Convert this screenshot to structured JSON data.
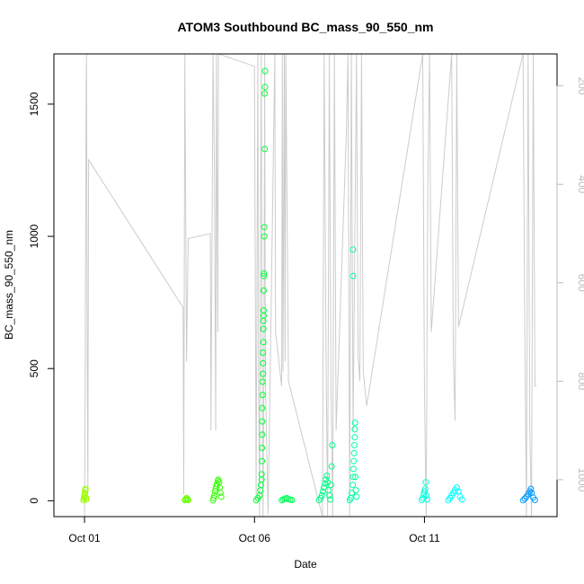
{
  "chart_data": {
    "type": "scatter",
    "title": "ATOM3 Southbound BC_mass_90_550_nm",
    "xlabel": "Date",
    "ylabel": "BC_mass_90_550_nm",
    "x_ticks": [
      {
        "label": "Oct 01",
        "day": 1
      },
      {
        "label": "Oct 06",
        "day": 6
      },
      {
        "label": "Oct 11",
        "day": 11
      }
    ],
    "xlim_days": [
      0.1,
      14.9
    ],
    "ylim": [
      -60,
      1690
    ],
    "y_ticks": [
      0,
      500,
      1000,
      1500
    ],
    "y2_axis": {
      "reversed": true,
      "lim": [
        1075,
        135
      ],
      "ticks": [
        200,
        400,
        600,
        800,
        1000
      ],
      "color": "#bbbbbb"
    },
    "series": [
      {
        "day": 1.0,
        "color": "#99ff00",
        "points": [
          [
            -0.03,
            2
          ],
          [
            -0.02,
            8
          ],
          [
            -0.01,
            15
          ],
          [
            0.0,
            22
          ],
          [
            0.01,
            30
          ],
          [
            0.02,
            40
          ],
          [
            0.03,
            45
          ],
          [
            0.04,
            12
          ],
          [
            0.05,
            5
          ]
        ]
      },
      {
        "day": 4.0,
        "color": "#66ff00",
        "points": [
          [
            -0.05,
            2
          ],
          [
            -0.02,
            5
          ],
          [
            0.0,
            10
          ],
          [
            0.02,
            6
          ],
          [
            0.05,
            3
          ]
        ]
      },
      {
        "day": 4.9,
        "color": "#33ff00",
        "points": [
          [
            -0.12,
            2
          ],
          [
            -0.1,
            10
          ],
          [
            -0.08,
            20
          ],
          [
            -0.06,
            35
          ],
          [
            -0.04,
            45
          ],
          [
            -0.02,
            55
          ],
          [
            0.0,
            65
          ],
          [
            0.02,
            75
          ],
          [
            0.04,
            80
          ],
          [
            0.06,
            70
          ],
          [
            0.08,
            50
          ],
          [
            0.1,
            30
          ],
          [
            0.12,
            15
          ]
        ]
      },
      {
        "day": 6.15,
        "color": "#00ff33",
        "points": [
          [
            -0.1,
            2
          ],
          [
            -0.05,
            10
          ],
          [
            0.0,
            20
          ],
          [
            0.02,
            40
          ],
          [
            0.04,
            60
          ],
          [
            0.06,
            80
          ],
          [
            0.06,
            100
          ],
          [
            0.07,
            150
          ],
          [
            0.07,
            200
          ],
          [
            0.08,
            250
          ],
          [
            0.08,
            300
          ],
          [
            0.08,
            350
          ],
          [
            0.09,
            400
          ],
          [
            0.09,
            450
          ],
          [
            0.1,
            480
          ],
          [
            0.1,
            520
          ],
          [
            0.1,
            560
          ],
          [
            0.11,
            600
          ],
          [
            0.11,
            650
          ],
          [
            0.11,
            680
          ],
          [
            0.12,
            700
          ],
          [
            0.12,
            720
          ],
          [
            0.12,
            795
          ],
          [
            0.13,
            850
          ],
          [
            0.13,
            860
          ],
          [
            0.14,
            1000
          ],
          [
            0.14,
            1035
          ],
          [
            0.15,
            1330
          ],
          [
            0.15,
            1540
          ],
          [
            0.16,
            1565
          ],
          [
            0.16,
            1625
          ]
        ]
      },
      {
        "day": 6.95,
        "color": "#00ff55",
        "points": [
          [
            -0.15,
            2
          ],
          [
            -0.1,
            5
          ],
          [
            -0.05,
            8
          ],
          [
            0.0,
            10
          ],
          [
            0.05,
            6
          ],
          [
            0.1,
            4
          ],
          [
            0.15,
            3
          ]
        ]
      },
      {
        "day": 8.05,
        "color": "#00ff88",
        "points": [
          [
            -0.15,
            2
          ],
          [
            -0.1,
            10
          ],
          [
            -0.07,
            20
          ],
          [
            -0.04,
            35
          ],
          [
            -0.01,
            50
          ],
          [
            0.02,
            65
          ],
          [
            0.05,
            80
          ],
          [
            0.08,
            95
          ],
          [
            0.1,
            70
          ],
          [
            0.12,
            40
          ],
          [
            0.15,
            20
          ],
          [
            0.18,
            5
          ],
          [
            0.2,
            60
          ],
          [
            0.22,
            130
          ],
          [
            0.24,
            210
          ]
        ]
      },
      {
        "day": 8.9,
        "color": "#00ffa0",
        "points": [
          [
            -0.1,
            2
          ],
          [
            -0.07,
            10
          ],
          [
            -0.04,
            30
          ],
          [
            -0.01,
            60
          ],
          [
            0.0,
            90
          ],
          [
            0.01,
            120
          ],
          [
            0.02,
            150
          ],
          [
            0.03,
            180
          ],
          [
            0.04,
            210
          ],
          [
            0.05,
            240
          ],
          [
            0.05,
            270
          ],
          [
            0.06,
            295
          ],
          [
            0.07,
            90
          ],
          [
            0.08,
            40
          ],
          [
            0.1,
            15
          ],
          [
            0.0,
            850
          ],
          [
            0.0,
            950
          ]
        ]
      },
      {
        "day": 11.0,
        "color": "#00ffdd",
        "points": [
          [
            -0.08,
            2
          ],
          [
            -0.05,
            10
          ],
          [
            -0.02,
            25
          ],
          [
            0.0,
            35
          ],
          [
            0.02,
            45
          ],
          [
            0.04,
            70
          ],
          [
            0.06,
            20
          ],
          [
            0.08,
            5
          ]
        ]
      },
      {
        "day": 11.85,
        "color": "#00ffff",
        "points": [
          [
            -0.15,
            2
          ],
          [
            -0.1,
            10
          ],
          [
            -0.05,
            20
          ],
          [
            0.0,
            30
          ],
          [
            0.05,
            40
          ],
          [
            0.1,
            50
          ],
          [
            0.15,
            35
          ],
          [
            0.2,
            15
          ],
          [
            0.25,
            5
          ]
        ]
      },
      {
        "day": 14.05,
        "color": "#0099ff",
        "points": [
          [
            -0.15,
            2
          ],
          [
            -0.1,
            8
          ],
          [
            -0.05,
            15
          ],
          [
            0.0,
            25
          ],
          [
            0.05,
            35
          ],
          [
            0.08,
            45
          ],
          [
            0.1,
            30
          ],
          [
            0.15,
            12
          ],
          [
            0.2,
            3
          ]
        ]
      }
    ],
    "altitude_trace": {
      "color": "#cccccc",
      "points": [
        [
          1.0,
          1075
        ],
        [
          1.02,
          800
        ],
        [
          1.05,
          200
        ],
        [
          1.06,
          135
        ],
        [
          1.08,
          760
        ],
        [
          1.1,
          1030
        ],
        [
          1.12,
          350
        ],
        [
          3.9,
          650
        ],
        [
          3.92,
          1030
        ],
        [
          3.95,
          135
        ],
        [
          4.0,
          760
        ],
        [
          4.05,
          510
        ],
        [
          4.7,
          500
        ],
        [
          4.72,
          900
        ],
        [
          4.78,
          135
        ],
        [
          4.82,
          350
        ],
        [
          4.86,
          900
        ],
        [
          4.88,
          135
        ],
        [
          4.92,
          700
        ],
        [
          4.94,
          135
        ],
        [
          6.0,
          160
        ],
        [
          6.05,
          1030
        ],
        [
          6.1,
          135
        ],
        [
          6.12,
          800
        ],
        [
          6.15,
          1075
        ],
        [
          6.18,
          400
        ],
        [
          6.2,
          135
        ],
        [
          6.22,
          700
        ],
        [
          6.25,
          1075
        ],
        [
          6.28,
          750
        ],
        [
          6.3,
          135
        ],
        [
          6.32,
          800
        ],
        [
          6.4,
          1070
        ],
        [
          6.6,
          135
        ],
        [
          6.62,
          700
        ],
        [
          6.8,
          810
        ],
        [
          6.82,
          135
        ],
        [
          6.84,
          780
        ],
        [
          6.88,
          135
        ],
        [
          6.9,
          760
        ],
        [
          6.92,
          135
        ],
        [
          7.0,
          800
        ],
        [
          8.0,
          1075
        ],
        [
          8.05,
          135
        ],
        [
          8.1,
          700
        ],
        [
          8.15,
          1075
        ],
        [
          8.2,
          135
        ],
        [
          8.25,
          800
        ],
        [
          8.3,
          1075
        ],
        [
          8.35,
          135
        ],
        [
          8.4,
          900
        ],
        [
          8.7,
          300
        ],
        [
          8.75,
          135
        ],
        [
          8.8,
          1075
        ],
        [
          8.85,
          135
        ],
        [
          8.9,
          900
        ],
        [
          9.0,
          135
        ],
        [
          9.05,
          750
        ],
        [
          9.1,
          800
        ],
        [
          9.15,
          135
        ],
        [
          9.2,
          780
        ],
        [
          9.3,
          850
        ],
        [
          10.95,
          135
        ],
        [
          11.0,
          810
        ],
        [
          11.05,
          1075
        ],
        [
          11.1,
          400
        ],
        [
          11.15,
          135
        ],
        [
          11.2,
          700
        ],
        [
          11.8,
          135
        ],
        [
          11.85,
          750
        ],
        [
          11.9,
          880
        ],
        [
          11.95,
          135
        ],
        [
          12.0,
          690
        ],
        [
          13.9,
          135
        ],
        [
          13.95,
          700
        ],
        [
          14.0,
          1075
        ],
        [
          14.05,
          135
        ],
        [
          14.1,
          900
        ],
        [
          14.15,
          1075
        ],
        [
          14.2,
          135
        ],
        [
          14.25,
          810
        ],
        [
          14.3,
          810
        ]
      ]
    }
  }
}
